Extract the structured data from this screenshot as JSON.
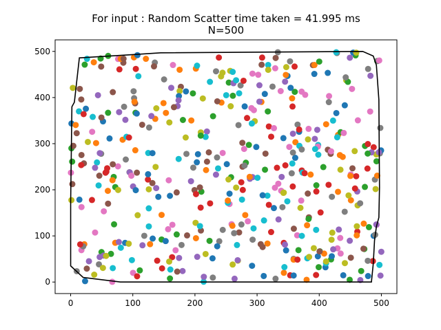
{
  "chart_data": {
    "type": "scatter",
    "title_line1": "For input : Random Scatter time taken = 41.995 ms",
    "title_line2": "N=500",
    "xlabel": "",
    "ylabel": "",
    "xlim": [
      -25,
      525
    ],
    "ylim": [
      -25,
      525
    ],
    "x_ticks": [
      0,
      100,
      200,
      300,
      400,
      500
    ],
    "y_ticks": [
      0,
      100,
      200,
      300,
      400,
      500
    ],
    "grid": false,
    "marker_colors": [
      "#1f77b4",
      "#ff7f0e",
      "#2ca02c",
      "#d62728",
      "#9467bd",
      "#8c564b",
      "#e377c2",
      "#7f7f7f",
      "#bcbd22",
      "#17becf"
    ],
    "point_count": 500,
    "random_seed": 41995,
    "hull_color": "#000000",
    "hull": [
      [
        0,
        40
      ],
      [
        0,
        175
      ],
      [
        2,
        380
      ],
      [
        6,
        390
      ],
      [
        14,
        486
      ],
      [
        100,
        493
      ],
      [
        145,
        497
      ],
      [
        470,
        500
      ],
      [
        487,
        490
      ],
      [
        492,
        470
      ],
      [
        496,
        395
      ],
      [
        497,
        205
      ],
      [
        496,
        140
      ],
      [
        492,
        120
      ],
      [
        489,
        90
      ],
      [
        487,
        40
      ],
      [
        484,
        0
      ],
      [
        80,
        0
      ],
      [
        20,
        10
      ],
      [
        0,
        35
      ]
    ]
  }
}
